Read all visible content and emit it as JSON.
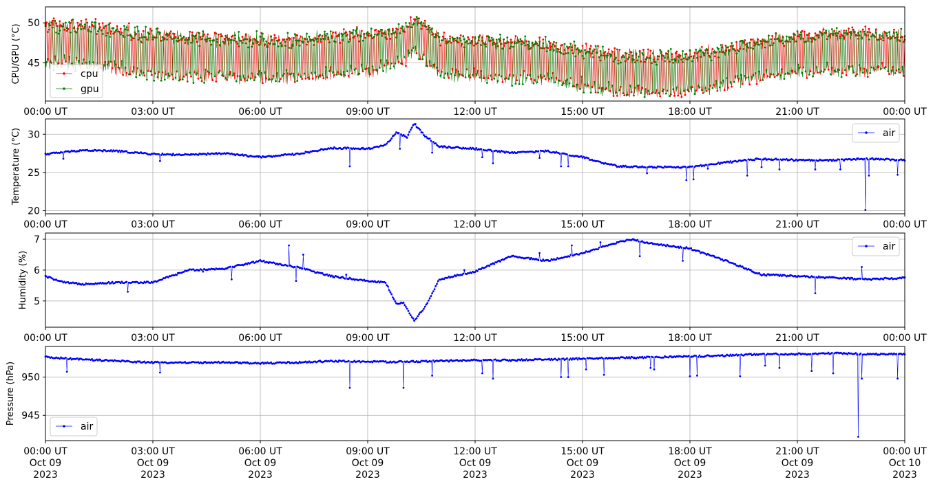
{
  "chart_data": [
    {
      "type": "line",
      "ylabel": "CPU/GPU (°C)",
      "ylim": [
        40.2,
        52.0
      ],
      "yticks": [
        45,
        50
      ],
      "grid": true,
      "legend": "bottom-left",
      "x_tick_labels": [
        "00:00 UT",
        "03:00 UT",
        "06:00 UT",
        "09:00 UT",
        "12:00 UT",
        "15:00 UT",
        "18:00 UT",
        "21:00 UT",
        "00:00 UT"
      ],
      "series": [
        {
          "name": "cpu",
          "color": "#ff0000",
          "x": [
            0,
            1,
            2,
            3,
            4,
            5,
            6,
            7,
            8,
            9,
            10,
            10.4,
            11,
            12,
            13,
            14,
            15,
            16,
            17,
            18,
            19,
            20,
            21,
            22,
            23,
            24
          ],
          "center": [
            47.5,
            47.3,
            46.8,
            46.0,
            45.8,
            45.7,
            45.5,
            45.6,
            46.0,
            46.3,
            47.2,
            48.6,
            45.8,
            45.6,
            45.4,
            45.2,
            44.4,
            43.8,
            43.6,
            43.7,
            44.5,
            45.6,
            46.2,
            46.4,
            46.4,
            46.3
          ],
          "amp": [
            3.0,
            3.0,
            3.0,
            3.0,
            3.0,
            3.0,
            3.0,
            3.0,
            3.0,
            3.0,
            2.5,
            2.5,
            2.8,
            2.8,
            2.8,
            2.8,
            2.8,
            2.8,
            2.8,
            2.8,
            2.8,
            2.8,
            2.8,
            2.8,
            2.8,
            2.8
          ]
        },
        {
          "name": "gpu",
          "color": "#008000",
          "x": [
            0,
            1,
            2,
            3,
            4,
            5,
            6,
            7,
            8,
            9,
            10,
            10.4,
            11,
            12,
            13,
            14,
            15,
            16,
            17,
            18,
            19,
            20,
            21,
            22,
            23,
            24
          ],
          "center": [
            47.4,
            47.2,
            46.7,
            46.0,
            45.8,
            45.6,
            45.5,
            45.6,
            45.9,
            46.2,
            47.1,
            48.5,
            45.8,
            45.5,
            45.3,
            45.1,
            44.3,
            43.7,
            43.6,
            43.7,
            44.4,
            45.5,
            46.1,
            46.3,
            46.3,
            46.3
          ],
          "amp": [
            3.0,
            3.0,
            3.0,
            3.0,
            3.0,
            3.0,
            3.0,
            3.0,
            3.0,
            3.0,
            2.5,
            2.5,
            2.8,
            2.8,
            2.8,
            2.8,
            2.8,
            2.8,
            2.8,
            2.8,
            2.8,
            2.8,
            2.8,
            2.8,
            2.8,
            2.8
          ]
        }
      ]
    },
    {
      "type": "line",
      "ylabel": "Temperature (°C)",
      "ylim": [
        19.6,
        32.0
      ],
      "yticks": [
        20,
        25,
        30
      ],
      "grid": true,
      "legend": "top-right",
      "x_tick_labels": [
        "00:00 UT",
        "03:00 UT",
        "06:00 UT",
        "09:00 UT",
        "12:00 UT",
        "15:00 UT",
        "18:00 UT",
        "21:00 UT",
        "00:00 UT"
      ],
      "series": [
        {
          "name": "air",
          "color": "#0000ff",
          "x": [
            0,
            1,
            2,
            3,
            4,
            5,
            6,
            7,
            8,
            9,
            9.5,
            9.8,
            10.1,
            10.3,
            10.6,
            11,
            12,
            13,
            14,
            15,
            15.5,
            16,
            17,
            18,
            19,
            20,
            21,
            22,
            23,
            24
          ],
          "y": [
            27.4,
            27.9,
            27.8,
            27.4,
            27.3,
            27.5,
            27.0,
            27.4,
            28.2,
            28.1,
            28.6,
            30.2,
            29.6,
            31.4,
            29.8,
            28.4,
            28.1,
            27.6,
            27.8,
            27.0,
            26.3,
            25.8,
            25.7,
            25.7,
            26.3,
            26.8,
            26.6,
            26.6,
            26.8,
            26.6
          ],
          "dips": [
            {
              "x": 0.5,
              "y": 26.8
            },
            {
              "x": 3.2,
              "y": 26.5
            },
            {
              "x": 8.5,
              "y": 25.8
            },
            {
              "x": 9.9,
              "y": 28.1
            },
            {
              "x": 10.8,
              "y": 27.6
            },
            {
              "x": 12.2,
              "y": 27.0
            },
            {
              "x": 12.5,
              "y": 26.2
            },
            {
              "x": 13.8,
              "y": 26.9
            },
            {
              "x": 14.4,
              "y": 25.8
            },
            {
              "x": 14.6,
              "y": 25.8
            },
            {
              "x": 16.8,
              "y": 24.9
            },
            {
              "x": 17.9,
              "y": 24.0
            },
            {
              "x": 18.1,
              "y": 24.1
            },
            {
              "x": 18.5,
              "y": 25.5
            },
            {
              "x": 19.6,
              "y": 24.6
            },
            {
              "x": 20.0,
              "y": 25.7
            },
            {
              "x": 20.5,
              "y": 25.4
            },
            {
              "x": 21.5,
              "y": 25.4
            },
            {
              "x": 22.2,
              "y": 25.4
            },
            {
              "x": 22.9,
              "y": 20.1
            },
            {
              "x": 23.0,
              "y": 24.6
            },
            {
              "x": 23.8,
              "y": 24.7
            }
          ]
        }
      ]
    },
    {
      "type": "line",
      "ylabel": "Humidity (%)",
      "ylim": [
        4.15,
        7.2
      ],
      "yticks": [
        5,
        6,
        7
      ],
      "grid": true,
      "legend": "top-right",
      "x_tick_labels": [
        "00:00 UT",
        "03:00 UT",
        "06:00 UT",
        "09:00 UT",
        "12:00 UT",
        "15:00 UT",
        "18:00 UT",
        "21:00 UT",
        "00:00 UT"
      ],
      "series": [
        {
          "name": "air",
          "color": "#0000ff",
          "x": [
            0,
            0.5,
            1,
            2,
            3,
            4,
            5,
            6,
            7,
            8,
            9,
            9.5,
            9.8,
            10.0,
            10.3,
            10.6,
            11,
            12,
            13,
            14,
            15,
            16,
            16.3,
            17,
            18,
            19,
            20,
            21,
            22,
            23,
            24
          ],
          "y": [
            5.8,
            5.6,
            5.55,
            5.6,
            5.6,
            6.0,
            6.05,
            6.3,
            6.1,
            5.8,
            5.65,
            5.6,
            4.9,
            4.95,
            4.35,
            4.8,
            5.7,
            5.95,
            6.45,
            6.3,
            6.55,
            6.9,
            7.0,
            6.85,
            6.7,
            6.3,
            5.85,
            5.8,
            5.75,
            5.7,
            5.75
          ],
          "dips": [
            {
              "x": 2.3,
              "y": 5.3
            },
            {
              "x": 4.4,
              "y": 5.95
            },
            {
              "x": 5.2,
              "y": 5.7
            },
            {
              "x": 6.8,
              "y": 6.8
            },
            {
              "x": 7.2,
              "y": 6.5
            },
            {
              "x": 7.0,
              "y": 5.65
            },
            {
              "x": 8.4,
              "y": 5.85
            },
            {
              "x": 11.7,
              "y": 6.0
            },
            {
              "x": 13.8,
              "y": 6.55
            },
            {
              "x": 14.7,
              "y": 6.8
            },
            {
              "x": 15.5,
              "y": 6.9
            },
            {
              "x": 16.6,
              "y": 6.45
            },
            {
              "x": 17.8,
              "y": 6.3
            },
            {
              "x": 21.5,
              "y": 5.25
            },
            {
              "x": 22.8,
              "y": 6.1
            }
          ]
        }
      ]
    },
    {
      "type": "line",
      "ylabel": "Pressure (hPa)",
      "ylim": [
        941.7,
        954.0
      ],
      "yticks": [
        945,
        950
      ],
      "grid": true,
      "legend": "bottom-left",
      "x_tick_labels": [
        "00:00 UT\nOct 09\n2023",
        "03:00 UT\nOct 09\n2023",
        "06:00 UT\nOct 09\n2023",
        "09:00 UT\nOct 09\n2023",
        "12:00 UT\nOct 09\n2023",
        "15:00 UT\nOct 09\n2023",
        "18:00 UT\nOct 09\n2023",
        "21:00 UT\nOct 09\n2023",
        "00:00 UT\nOct 10\n2023"
      ],
      "series": [
        {
          "name": "air",
          "color": "#0000ff",
          "x": [
            0,
            1,
            2,
            3,
            4,
            5,
            6,
            7,
            8,
            9,
            10,
            11,
            12,
            13,
            14,
            15,
            16,
            17,
            18,
            19,
            20,
            21,
            22,
            23,
            24
          ],
          "y": [
            952.6,
            952.3,
            952.1,
            951.9,
            951.9,
            951.9,
            951.8,
            951.9,
            952.1,
            952.0,
            952.0,
            952.1,
            952.2,
            952.2,
            952.3,
            952.4,
            952.5,
            952.6,
            952.7,
            952.8,
            953.0,
            953.0,
            953.1,
            953.0,
            953.0
          ],
          "dips": [
            {
              "x": 0.6,
              "y": 950.7
            },
            {
              "x": 3.2,
              "y": 950.6
            },
            {
              "x": 8.5,
              "y": 948.6
            },
            {
              "x": 10.0,
              "y": 948.6
            },
            {
              "x": 10.8,
              "y": 950.2
            },
            {
              "x": 12.2,
              "y": 950.5
            },
            {
              "x": 12.5,
              "y": 949.8
            },
            {
              "x": 14.4,
              "y": 950.0
            },
            {
              "x": 14.6,
              "y": 950.0
            },
            {
              "x": 15.1,
              "y": 951.0
            },
            {
              "x": 15.6,
              "y": 950.3
            },
            {
              "x": 16.9,
              "y": 951.2
            },
            {
              "x": 17.0,
              "y": 951.0
            },
            {
              "x": 18.0,
              "y": 950.1
            },
            {
              "x": 18.2,
              "y": 950.2
            },
            {
              "x": 19.4,
              "y": 950.1
            },
            {
              "x": 20.1,
              "y": 951.5
            },
            {
              "x": 20.5,
              "y": 951.2
            },
            {
              "x": 21.4,
              "y": 950.8
            },
            {
              "x": 22.0,
              "y": 950.5
            },
            {
              "x": 22.7,
              "y": 942.2
            },
            {
              "x": 22.8,
              "y": 949.8
            },
            {
              "x": 23.8,
              "y": 949.8
            }
          ]
        }
      ]
    }
  ]
}
